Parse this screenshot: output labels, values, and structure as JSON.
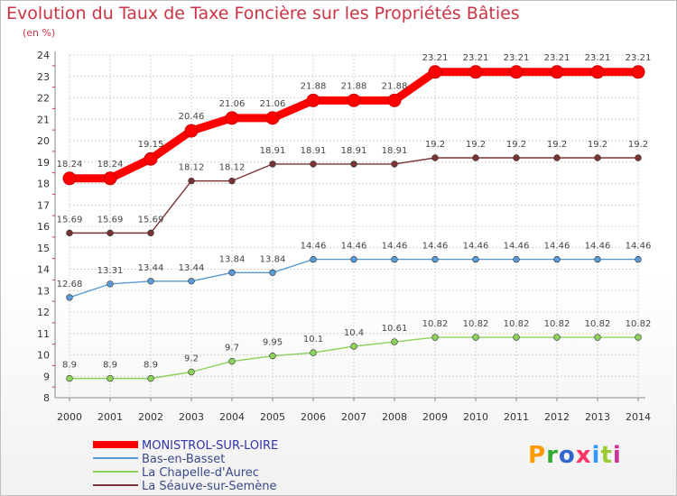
{
  "title": "Evolution du Taux de Taxe Foncière sur les Propriétés Bâties",
  "unit_label": "(en %)",
  "logo_text": "Proxiti",
  "logo_colors": [
    "#ff9900",
    "#33aa33",
    "#3366cc",
    "#ff3366",
    "#3399ff",
    "#99cc33",
    "#cc3399"
  ],
  "chart_data": {
    "type": "line",
    "title": "Evolution du Taux de Taxe Foncière sur les Propriétés Bâties",
    "ylabel": "(en %)",
    "xlabel": "",
    "ylim": [
      8,
      24
    ],
    "yticks": [
      8,
      9,
      10,
      11,
      12,
      13,
      14,
      15,
      16,
      17,
      18,
      19,
      20,
      21,
      22,
      23,
      24
    ],
    "grid": true,
    "x": [
      "2000",
      "2001",
      "2002",
      "2003",
      "2004",
      "2005",
      "2006",
      "2007",
      "2008",
      "2009",
      "2010",
      "2011",
      "2012",
      "2013",
      "2014"
    ],
    "series": [
      {
        "name": "MONISTROL-SUR-LOIRE",
        "color": "#ff0000",
        "label_color": "#3333aa",
        "values": [
          18.24,
          18.24,
          19.15,
          20.46,
          21.06,
          21.06,
          21.88,
          21.88,
          21.88,
          23.21,
          23.21,
          23.21,
          23.21,
          23.21,
          23.21
        ],
        "labels": [
          "18.24",
          "18.24",
          "19.15",
          "20.46",
          "21.06",
          "21.06",
          "21.88",
          "21.88",
          "21.88",
          "23.21",
          "23.21",
          "23.21",
          "23.21",
          "23.21",
          "23.21"
        ]
      },
      {
        "name": "Bas-en-Basset",
        "color": "#5b9bd5",
        "label_color": "#5b9bd5",
        "values": [
          12.68,
          13.31,
          13.44,
          13.44,
          13.84,
          13.84,
          14.46,
          14.46,
          14.46,
          14.46,
          14.46,
          14.46,
          14.46,
          14.46,
          14.46
        ],
        "labels": [
          "12.68",
          "13.31",
          "13.44",
          "13.44",
          "13.84",
          "13.84",
          "14.46",
          "14.46",
          "14.46",
          "14.46",
          "14.46",
          "14.46",
          "14.46",
          "14.46",
          "14.46"
        ]
      },
      {
        "name": "La Chapelle-d'Aurec",
        "color": "#8cd25a",
        "label_color": "#8cd25a",
        "values": [
          8.9,
          8.9,
          8.9,
          9.2,
          9.7,
          9.95,
          10.1,
          10.4,
          10.61,
          10.82,
          10.82,
          10.82,
          10.82,
          10.82,
          10.82
        ],
        "labels": [
          "8.9",
          "8.9",
          "8.9",
          "9.2",
          "9.7",
          "9.95",
          "10.1",
          "10.4",
          "10.61",
          "10.82",
          "10.82",
          "10.82",
          "10.82",
          "10.82",
          "10.82"
        ]
      },
      {
        "name": "La Séauve-sur-Semène",
        "color": "#7a3333",
        "label_color": "#7a3333",
        "values": [
          15.69,
          15.69,
          15.69,
          18.12,
          18.12,
          18.91,
          18.91,
          18.91,
          18.91,
          19.2,
          19.2,
          19.2,
          19.2,
          19.2,
          19.2
        ],
        "labels": [
          "15.69",
          "15.69",
          "15.69",
          "18.12",
          "18.12",
          "18.91",
          "18.91",
          "18.91",
          "18.91",
          "19.2",
          "19.2",
          "19.2",
          "19.2",
          "19.2",
          "19.2"
        ]
      }
    ],
    "legend": "bottom-left"
  }
}
